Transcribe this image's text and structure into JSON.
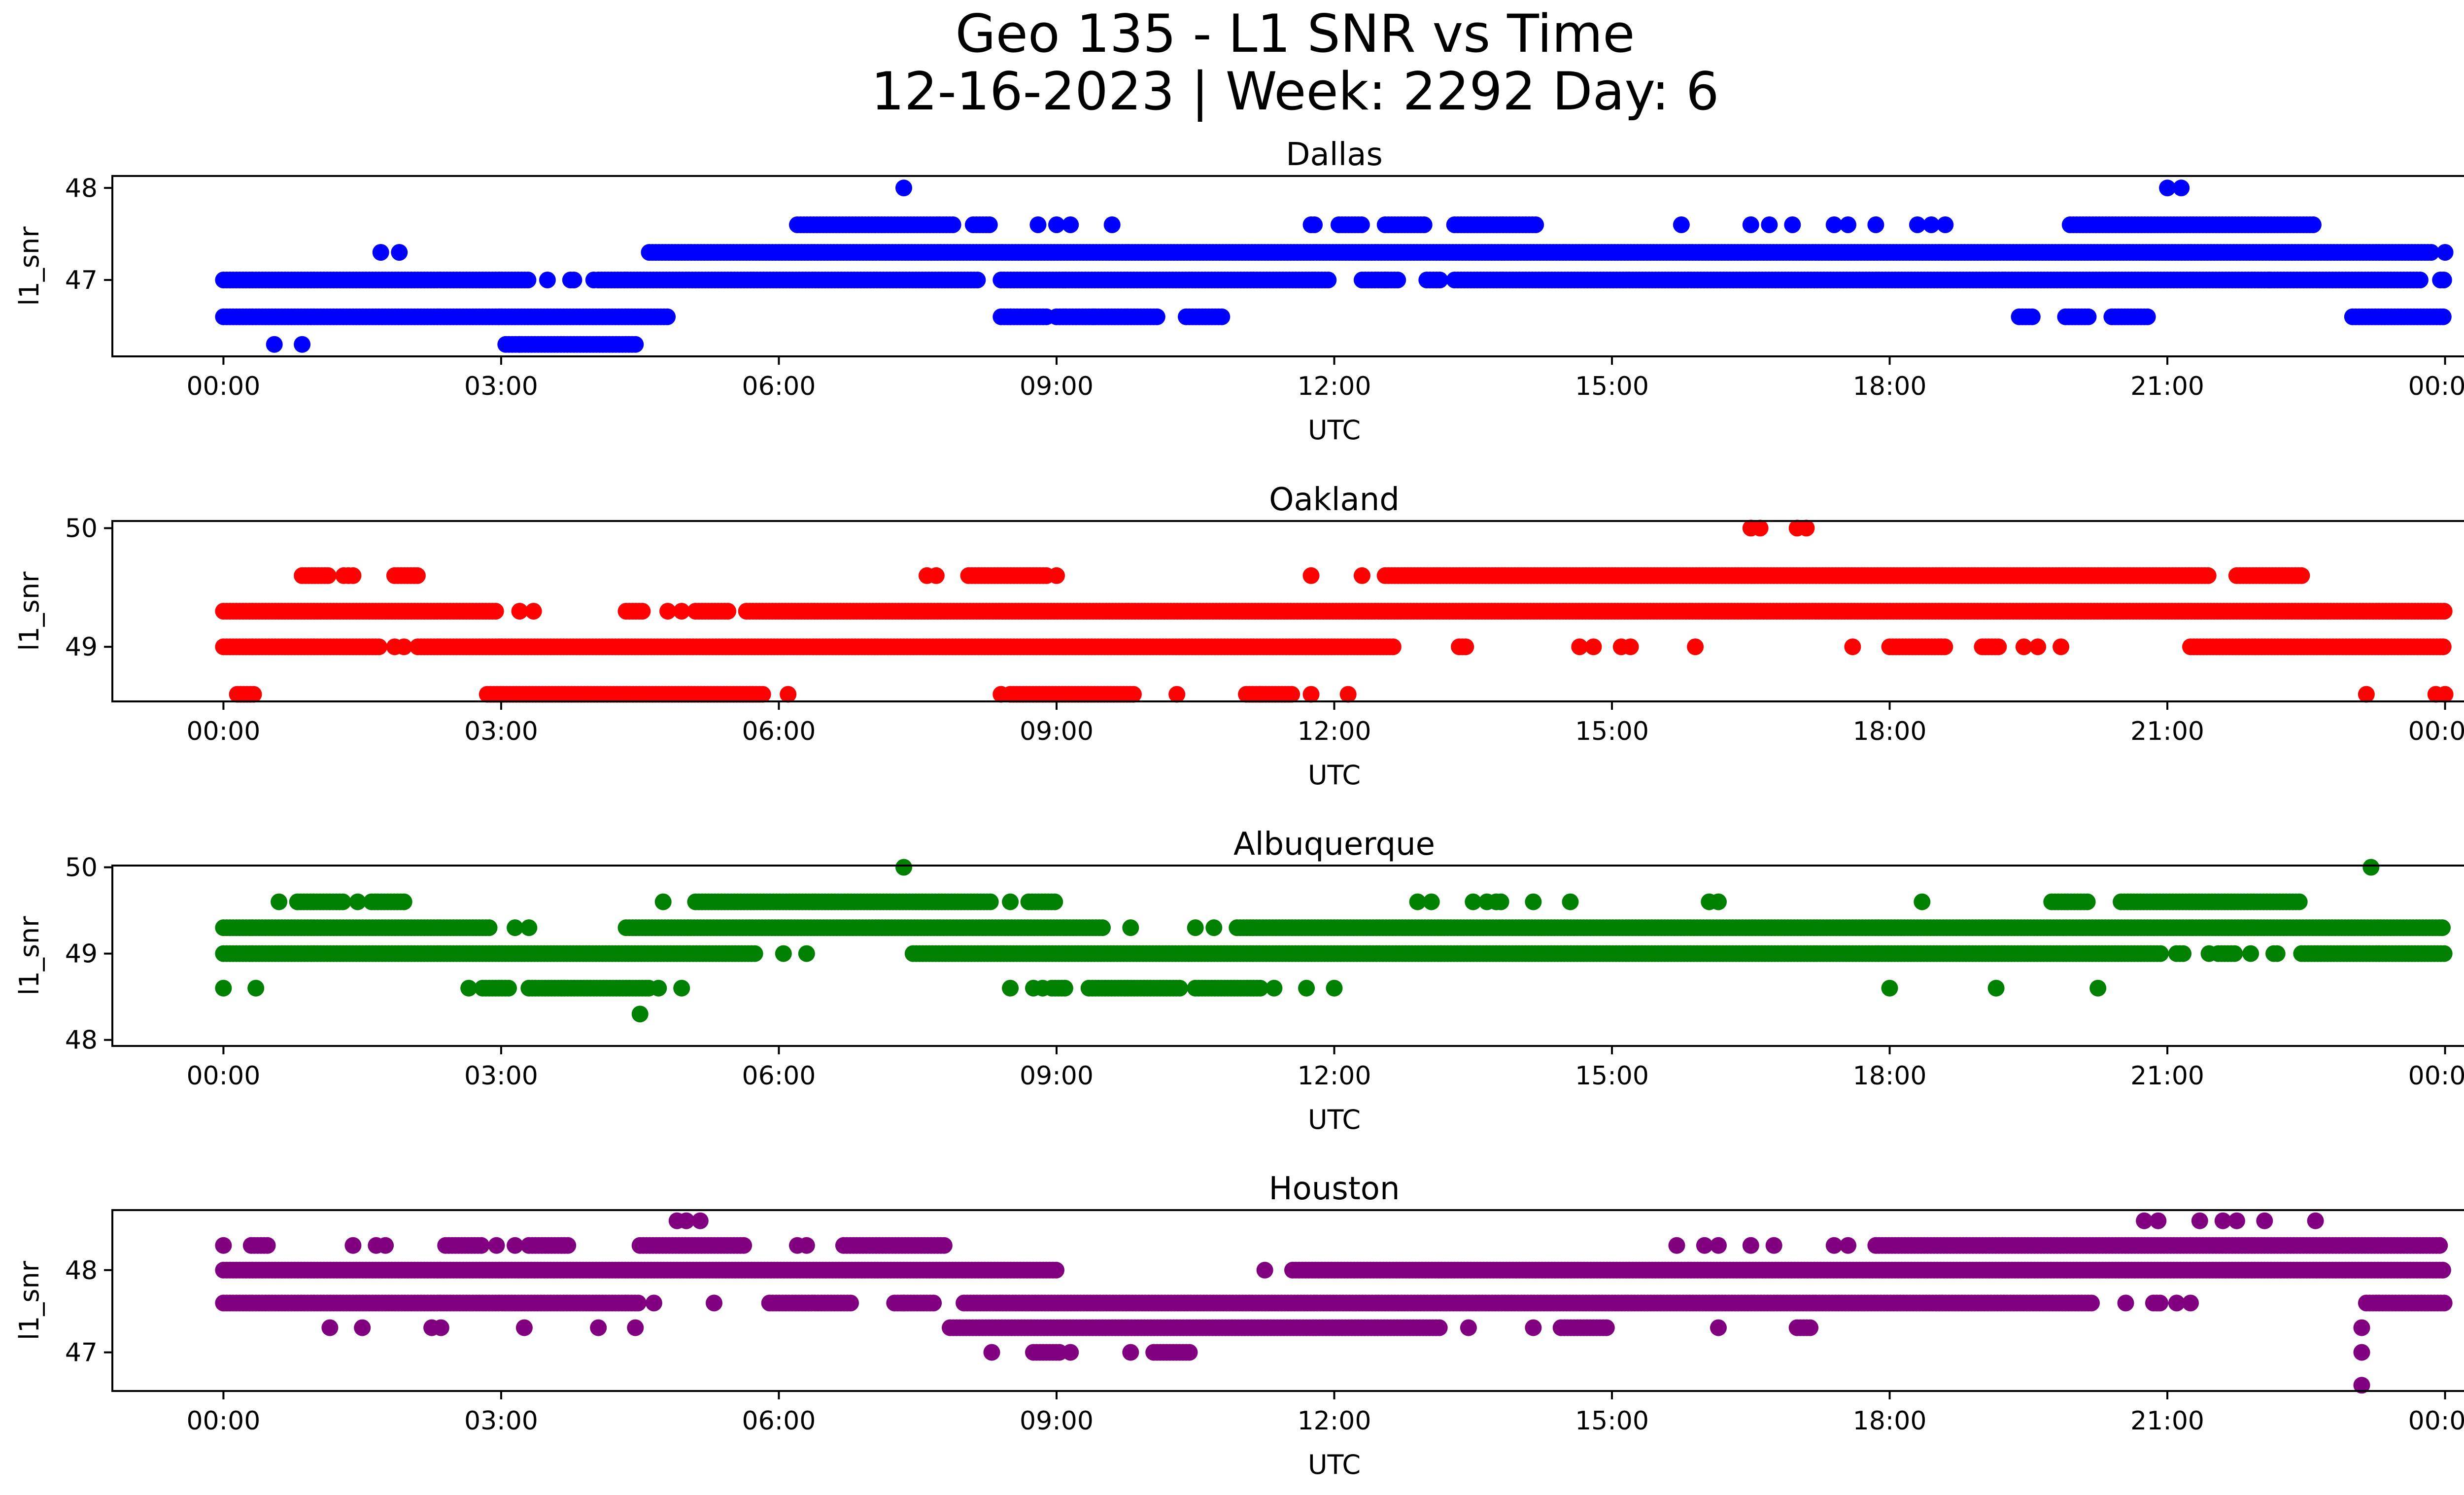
{
  "title_line1": "Geo 135 - L1 SNR vs Time",
  "title_line2": "12-16-2023 | Week: 2292 Day: 6",
  "chart_data": [
    {
      "type": "scatter",
      "title": "Dallas",
      "xlabel": "UTC",
      "ylabel": "l1_snr",
      "color": "#0000ff",
      "x_ticks": [
        "00:00",
        "03:00",
        "06:00",
        "09:00",
        "12:00",
        "15:00",
        "18:00",
        "21:00",
        "00:00"
      ],
      "xlim_hours": [
        -1.2,
        25.2
      ],
      "ylim": [
        46.17,
        48.13
      ],
      "y_ticks": [
        47,
        48
      ],
      "levels": [
        {
          "y": 48.0,
          "x_hours": [
            7.35,
            21.0,
            21.15
          ]
        },
        {
          "y": 47.6,
          "ranges": [
            [
              6.2,
              7.9
            ],
            [
              8.1,
              8.3
            ],
            [
              11.75,
              11.8
            ],
            [
              12.05,
              12.3
            ],
            [
              12.55,
              13.0
            ],
            [
              13.3,
              14.2
            ],
            [
              19.95,
              22.6
            ]
          ],
          "x_hours": [
            8.8,
            9.0,
            9.15,
            9.6,
            15.75,
            16.5,
            16.7,
            16.95,
            17.4,
            17.55,
            17.85,
            18.3,
            18.45,
            18.6
          ]
        },
        {
          "y": 47.3,
          "ranges": [
            [
              4.6,
              23.85
            ]
          ],
          "x_hours": [
            1.7,
            1.9,
            24.0
          ]
        },
        {
          "y": 47.0,
          "ranges": [
            [
              0.0,
              3.3
            ],
            [
              3.75,
              3.8
            ],
            [
              4.05,
              8.15
            ],
            [
              8.4,
              11.95
            ],
            [
              12.3,
              12.7
            ],
            [
              13.0,
              13.15
            ],
            [
              13.3,
              23.75
            ],
            [
              23.95,
              24.0
            ]
          ],
          "x_hours": [
            3.5,
            4.0,
            12.55,
            22.1
          ]
        },
        {
          "y": 46.6,
          "ranges": [
            [
              0.0,
              4.8
            ],
            [
              8.4,
              8.9
            ],
            [
              9.0,
              10.1
            ],
            [
              10.4,
              10.8
            ],
            [
              19.4,
              19.55
            ],
            [
              19.9,
              20.15
            ],
            [
              20.4,
              20.8
            ],
            [
              23.0,
              24.0
            ]
          ],
          "x_hours": [
            8.5,
            9.4
          ]
        },
        {
          "y": 46.3,
          "ranges": [
            [
              3.05,
              4.45
            ]
          ],
          "x_hours": [
            0.55,
            0.85,
            3.2
          ]
        }
      ]
    },
    {
      "type": "scatter",
      "title": "Oakland",
      "xlabel": "UTC",
      "ylabel": "l1_snr",
      "color": "#ff0000",
      "x_ticks": [
        "00:00",
        "03:00",
        "06:00",
        "09:00",
        "12:00",
        "15:00",
        "18:00",
        "21:00",
        "00:00"
      ],
      "xlim_hours": [
        -1.2,
        25.2
      ],
      "ylim": [
        48.54,
        50.06
      ],
      "y_ticks": [
        49,
        50
      ],
      "levels": [
        {
          "y": 50.0,
          "x_hours": [
            16.5,
            16.6,
            17.0,
            17.1
          ]
        },
        {
          "y": 49.6,
          "ranges": [
            [
              0.85,
              1.15
            ],
            [
              1.85,
              2.1
            ],
            [
              8.05,
              8.9
            ],
            [
              12.55,
              21.45
            ],
            [
              21.75,
              22.45
            ]
          ],
          "x_hours": [
            1.3,
            1.35,
            1.4,
            7.6,
            7.7,
            9.0,
            11.75,
            12.3
          ]
        },
        {
          "y": 49.3,
          "ranges": [
            [
              0.0,
              2.95
            ],
            [
              4.35,
              4.55
            ],
            [
              5.1,
              5.45
            ],
            [
              5.65,
              24.0
            ]
          ],
          "x_hours": [
            3.2,
            3.35,
            4.8,
            4.95
          ]
        },
        {
          "y": 49.0,
          "ranges": [
            [
              0.0,
              1.7
            ],
            [
              2.1,
              12.65
            ],
            [
              13.35,
              13.45
            ],
            [
              18.0,
              18.6
            ],
            [
              19.0,
              19.2
            ],
            [
              21.25,
              24.0
            ]
          ],
          "x_hours": [
            1.85,
            1.95,
            14.65,
            14.8,
            15.1,
            15.2,
            15.9,
            17.6,
            19.45,
            19.6,
            19.85
          ]
        },
        {
          "y": 48.6,
          "ranges": [
            [
              0.15,
              0.35
            ],
            [
              2.85,
              5.85
            ],
            [
              8.5,
              9.85
            ],
            [
              11.05,
              11.55
            ]
          ],
          "x_hours": [
            6.1,
            8.4,
            10.3,
            11.2,
            11.75,
            12.15,
            23.15,
            23.9,
            24.0
          ]
        }
      ]
    },
    {
      "type": "scatter",
      "title": "Albuquerque",
      "xlabel": "UTC",
      "ylabel": "l1_snr",
      "color": "#008000",
      "x_ticks": [
        "00:00",
        "03:00",
        "06:00",
        "09:00",
        "12:00",
        "15:00",
        "18:00",
        "21:00",
        "00:00"
      ],
      "xlim_hours": [
        -1.2,
        25.2
      ],
      "ylim": [
        47.93,
        50.02
      ],
      "y_ticks": [
        48,
        49,
        50
      ],
      "levels": [
        {
          "y": 50.0,
          "x_hours": [
            7.35,
            23.2
          ]
        },
        {
          "y": 49.6,
          "ranges": [
            [
              0.8,
              1.3
            ],
            [
              1.6,
              1.95
            ],
            [
              5.1,
              8.3
            ],
            [
              8.7,
              9.0
            ],
            [
              19.75,
              20.15
            ],
            [
              20.5,
              22.45
            ]
          ],
          "x_hours": [
            0.6,
            1.45,
            4.75,
            8.5,
            12.9,
            13.05,
            13.5,
            13.65,
            13.75,
            13.8,
            14.15,
            14.55,
            16.05,
            16.15,
            18.35
          ]
        },
        {
          "y": 49.3,
          "ranges": [
            [
              0.0,
              2.9
            ],
            [
              4.35,
              9.5
            ],
            [
              10.95,
              24.0
            ]
          ],
          "x_hours": [
            3.15,
            3.3,
            9.8,
            10.5,
            10.7
          ]
        },
        {
          "y": 49.0,
          "ranges": [
            [
              0.0,
              5.75
            ],
            [
              7.45,
              20.95
            ],
            [
              21.1,
              21.2
            ],
            [
              21.55,
              21.75
            ],
            [
              22.15,
              22.2
            ],
            [
              22.45,
              24.0
            ]
          ],
          "x_hours": [
            6.05,
            6.3,
            21.45,
            21.9
          ]
        },
        {
          "y": 48.6,
          "ranges": [
            [
              2.8,
              3.1
            ],
            [
              3.3,
              4.6
            ],
            [
              8.95,
              9.1
            ],
            [
              9.35,
              10.35
            ],
            [
              10.5,
              11.2
            ]
          ],
          "x_hours": [
            0.0,
            0.35,
            2.65,
            4.7,
            4.95,
            8.5,
            8.75,
            8.85,
            11.35,
            11.7,
            12.0,
            18.0,
            19.15,
            20.25
          ]
        },
        {
          "y": 48.3,
          "x_hours": [
            4.5
          ]
        }
      ]
    },
    {
      "type": "scatter",
      "title": "Houston",
      "xlabel": "UTC",
      "ylabel": "l1_snr",
      "color": "#800080",
      "x_ticks": [
        "00:00",
        "03:00",
        "06:00",
        "09:00",
        "12:00",
        "15:00",
        "18:00",
        "21:00",
        "00:00"
      ],
      "xlim_hours": [
        -1.2,
        25.2
      ],
      "ylim": [
        46.53,
        48.73
      ],
      "y_ticks": [
        47,
        48
      ],
      "levels": [
        {
          "y": 48.6,
          "x_hours": [
            4.9,
            5.0,
            5.15,
            20.75,
            20.9,
            21.35,
            21.6,
            21.75,
            22.05,
            22.6
          ]
        },
        {
          "y": 48.3,
          "ranges": [
            [
              0.3,
              0.5
            ],
            [
              2.4,
              2.8
            ],
            [
              3.3,
              3.75
            ],
            [
              4.5,
              5.65
            ],
            [
              6.7,
              7.8
            ],
            [
              17.85,
              23.95
            ]
          ],
          "x_hours": [
            0.0,
            1.4,
            1.65,
            1.75,
            2.95,
            3.15,
            6.2,
            6.3,
            15.7,
            16.0,
            16.15,
            16.5,
            16.75,
            17.4,
            17.55
          ]
        },
        {
          "y": 48.0,
          "ranges": [
            [
              0.0,
              9.0
            ],
            [
              11.55,
              24.0
            ]
          ],
          "x_hours": [
            11.25
          ]
        },
        {
          "y": 47.6,
          "ranges": [
            [
              0.0,
              4.5
            ],
            [
              5.9,
              6.8
            ],
            [
              7.25,
              7.7
            ],
            [
              8.0,
              20.2
            ],
            [
              20.85,
              20.95
            ],
            [
              23.15,
              24.0
            ]
          ],
          "x_hours": [
            4.65,
            5.3,
            7.35,
            20.55,
            21.1,
            21.25
          ]
        },
        {
          "y": 47.3,
          "ranges": [
            [
              7.85,
              13.15
            ],
            [
              14.45,
              14.95
            ],
            [
              17.0,
              17.15
            ]
          ],
          "x_hours": [
            1.15,
            1.5,
            2.25,
            2.35,
            3.25,
            4.05,
            4.45,
            13.45,
            14.15,
            16.15,
            23.1
          ]
        },
        {
          "y": 47.0,
          "ranges": [
            [
              8.75,
              9.05
            ],
            [
              10.05,
              10.45
            ]
          ],
          "x_hours": [
            8.3,
            9.15,
            9.8,
            23.1
          ]
        },
        {
          "y": 46.6,
          "x_hours": [
            23.1
          ]
        }
      ]
    }
  ]
}
